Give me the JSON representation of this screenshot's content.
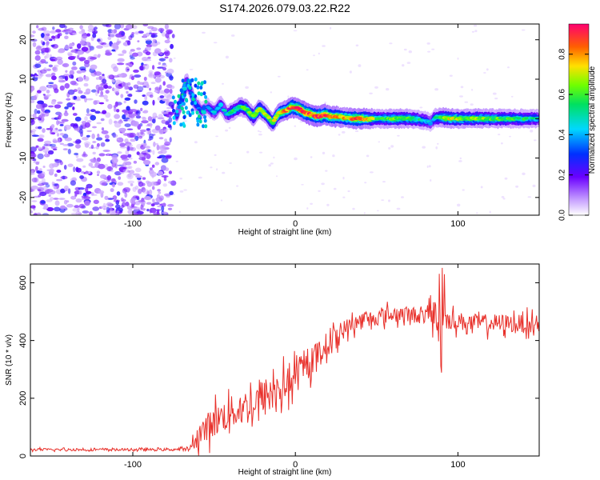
{
  "title": "S174.2026.079.03.22.R22",
  "chart_data": [
    {
      "type": "heatmap",
      "name": "spectrogram",
      "xlabel": "Height of straight line (km)",
      "ylabel": "Frequency (Hz)",
      "xlim": [
        -163,
        150
      ],
      "ylim": [
        -24.5,
        24
      ],
      "xticks": [
        -100,
        0,
        100
      ],
      "yticks": [
        -20,
        -10,
        0,
        10,
        20
      ],
      "colorbar": {
        "label": "Normalized spectral amplitude",
        "range": [
          0,
          0.95
        ],
        "ticks": [
          0.0,
          0.2,
          0.4,
          0.6,
          0.8
        ]
      },
      "noise_region_x": [
        -163,
        -75
      ],
      "ridge": {
        "x": [
          -73,
          -70,
          -67,
          -65,
          -62,
          -58,
          -54,
          -50,
          -46,
          -42,
          -38,
          -34,
          -30,
          -26,
          -22,
          -18,
          -14,
          -10,
          -6,
          -2,
          2,
          6,
          10,
          14,
          18,
          22,
          26,
          30,
          35,
          40,
          45,
          50,
          55,
          60,
          65,
          70,
          75,
          80,
          83,
          86,
          90,
          95,
          100,
          110,
          120,
          130,
          140,
          150
        ],
        "freq": [
          1.0,
          4.5,
          9.5,
          7.5,
          4.0,
          2.0,
          3.0,
          1.5,
          3.5,
          1.0,
          2.0,
          3.0,
          2.5,
          0.5,
          2.5,
          1.0,
          -1.0,
          1.5,
          2.0,
          3.0,
          2.5,
          1.5,
          1.0,
          0.5,
          1.0,
          0.5,
          0.5,
          0.3,
          0.0,
          0.0,
          0.0,
          0.0,
          0.0,
          0.0,
          0.0,
          0.0,
          -0.2,
          -0.5,
          -1.0,
          0.2,
          0.3,
          0.0,
          0.0,
          0.0,
          0.0,
          0.0,
          0.0,
          0.0
        ],
        "amp": [
          0.35,
          0.45,
          0.5,
          0.3,
          0.35,
          0.3,
          0.35,
          0.4,
          0.45,
          0.45,
          0.5,
          0.55,
          0.6,
          0.6,
          0.65,
          0.6,
          0.62,
          0.7,
          0.75,
          0.8,
          0.85,
          0.8,
          0.85,
          0.82,
          0.85,
          0.8,
          0.75,
          0.7,
          0.78,
          0.82,
          0.75,
          0.5,
          0.55,
          0.62,
          0.58,
          0.55,
          0.5,
          0.45,
          0.4,
          0.45,
          0.6,
          0.65,
          0.62,
          0.6,
          0.58,
          0.55,
          0.52,
          0.45
        ]
      }
    },
    {
      "type": "line",
      "name": "snr",
      "xlabel": "Height of straight line (km)",
      "ylabel": "SNR (10 * v/v)",
      "xlim": [
        -163,
        150
      ],
      "ylim": [
        0,
        665
      ],
      "xticks": [
        -100,
        0,
        100
      ],
      "yticks": [
        0,
        200,
        400,
        600
      ],
      "color": "#e8302a",
      "envelope": {
        "x": [
          -163,
          -140,
          -120,
          -100,
          -80,
          -65,
          -60,
          -50,
          -40,
          -30,
          -20,
          -10,
          0,
          10,
          20,
          30,
          40,
          50,
          60,
          70,
          80,
          87,
          89,
          91,
          95,
          110,
          130,
          150
        ],
        "mean": [
          22,
          22,
          22,
          22,
          22,
          24,
          70,
          120,
          150,
          170,
          200,
          230,
          270,
          330,
          390,
          440,
          470,
          480,
          490,
          490,
          485,
          500,
          420,
          480,
          470,
          460,
          460,
          455
        ],
        "spread": [
          6,
          6,
          6,
          6,
          6,
          8,
          60,
          80,
          80,
          90,
          100,
          90,
          80,
          70,
          60,
          45,
          40,
          40,
          40,
          40,
          40,
          90,
          120,
          60,
          45,
          45,
          45,
          45
        ]
      }
    }
  ]
}
